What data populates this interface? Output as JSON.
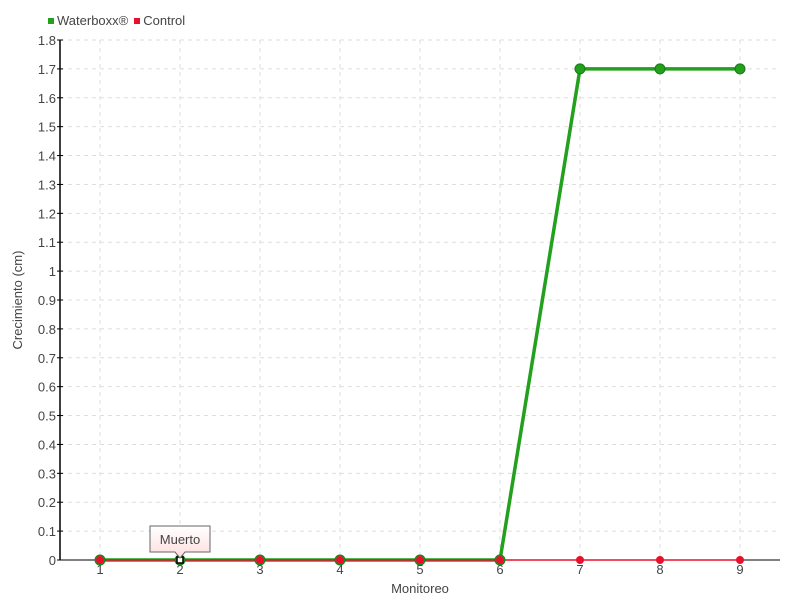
{
  "chart_data": {
    "type": "line",
    "title": "",
    "xlabel": "Monitoreo",
    "ylabel": "Crecimiento (cm)",
    "categories": [
      "1",
      "2",
      "3",
      "4",
      "5",
      "6",
      "7",
      "8",
      "9"
    ],
    "ylim": [
      0,
      1.8
    ],
    "yticks": [
      "0",
      "0.1",
      "0.2",
      "0.3",
      "0.4",
      "0.5",
      "0.6",
      "0.7",
      "0.8",
      "0.9",
      "1",
      "1.1",
      "1.2",
      "1.3",
      "1.4",
      "1.5",
      "1.6",
      "1.7",
      "1.8"
    ],
    "grid": true,
    "legend_position": "top-left",
    "series": [
      {
        "name": "Waterboxx®",
        "color": "#22a01e",
        "values": [
          0,
          0,
          0,
          0,
          0,
          0,
          1.7,
          1.7,
          1.7
        ]
      },
      {
        "name": "Control",
        "color": "#e8112d",
        "values": [
          0,
          0,
          0,
          0,
          0,
          0,
          0,
          0,
          0
        ]
      }
    ],
    "annotations": [
      {
        "category": "2",
        "series": "Control",
        "text": "Muerto"
      }
    ]
  }
}
